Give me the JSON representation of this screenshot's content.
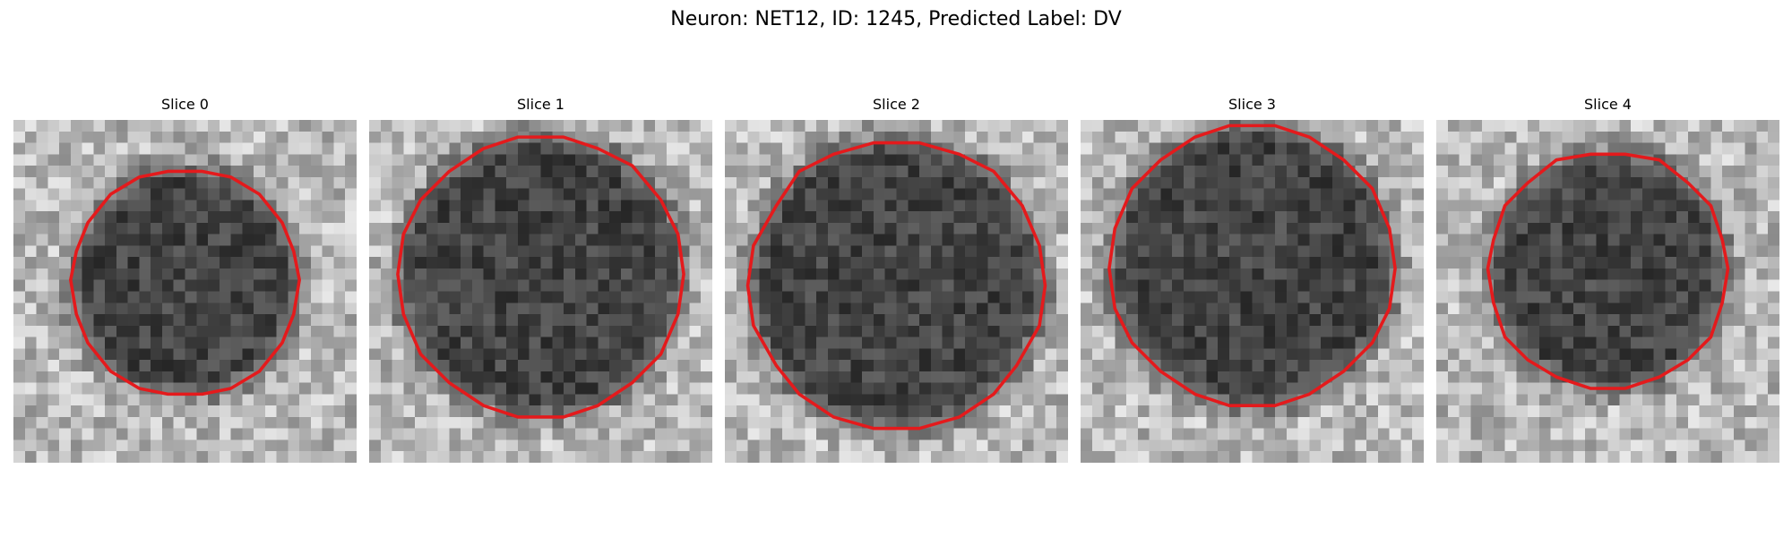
{
  "figure": {
    "title": "Neuron: NET12, ID: 1245, Predicted Label: DV"
  },
  "panels": [
    {
      "title": "Slice 0",
      "image": "grayscale-noise-slice",
      "outline_color": "#e41a1c"
    },
    {
      "title": "Slice 1",
      "image": "grayscale-noise-slice",
      "outline_color": "#e41a1c"
    },
    {
      "title": "Slice 2",
      "image": "grayscale-noise-slice",
      "outline_color": "#e41a1c"
    },
    {
      "title": "Slice 3",
      "image": "grayscale-noise-slice",
      "outline_color": "#e41a1c"
    },
    {
      "title": "Slice 4",
      "image": "grayscale-noise-slice",
      "outline_color": "#e41a1c"
    }
  ]
}
